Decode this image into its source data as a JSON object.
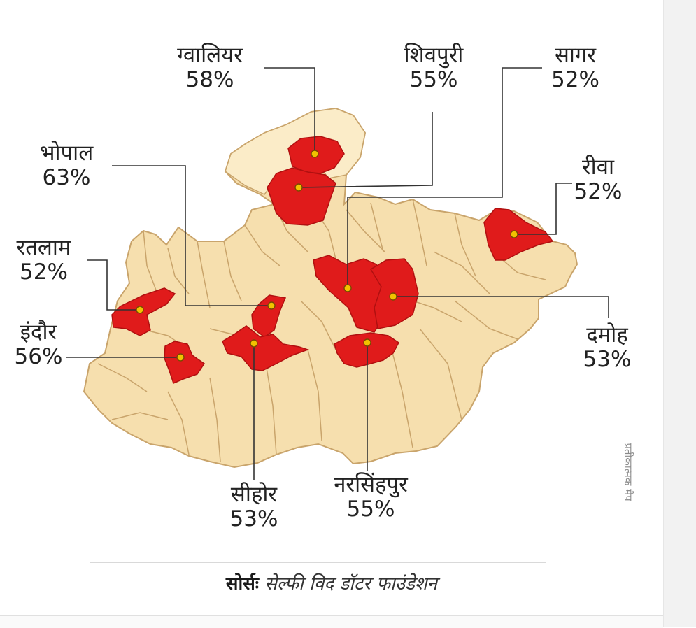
{
  "colors": {
    "base_fill": "#f6dfae",
    "highlight_fill": "#e01b1b",
    "border": "#c9a46b",
    "marker": "#f2c200",
    "leader_line": "#333333"
  },
  "districts": [
    {
      "name": "ग्वालियर",
      "pct": "58%"
    },
    {
      "name": "शिवपुरी",
      "pct": "55%"
    },
    {
      "name": "सागर",
      "pct": "52%"
    },
    {
      "name": "भोपाल",
      "pct": "63%"
    },
    {
      "name": "रीवा",
      "pct": "52%"
    },
    {
      "name": "रतलाम",
      "pct": "52%"
    },
    {
      "name": "इंदौर",
      "pct": "56%"
    },
    {
      "name": "दमोह",
      "pct": "53%"
    },
    {
      "name": "सीहोर",
      "pct": "53%"
    },
    {
      "name": "नरसिंहपुर",
      "pct": "55%"
    }
  ],
  "vertical_note": "प्रतीकात्मक मैप",
  "source": {
    "label": "सोर्सः",
    "text": "सेल्फी विद डॉटर फाउंडेशन"
  }
}
